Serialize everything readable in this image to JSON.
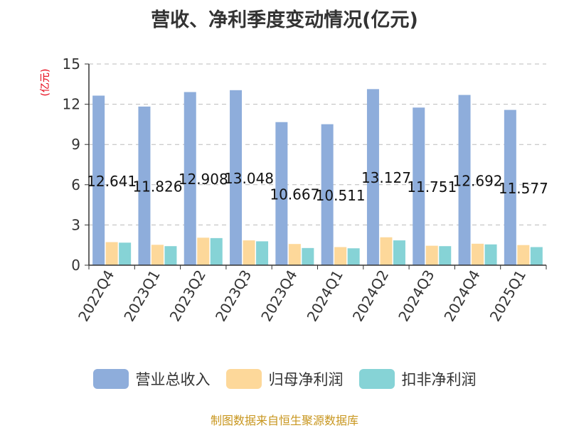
{
  "chart_data": {
    "type": "bar",
    "title": "营收、净利季度变动情况(亿元)",
    "ylabel": "(亿元)",
    "ylim": [
      0,
      15
    ],
    "yticks": [
      0,
      3,
      6,
      9,
      12,
      15
    ],
    "grid": true,
    "legend_position": "bottom",
    "categories": [
      "2022Q4",
      "2023Q1",
      "2023Q2",
      "2023Q3",
      "2023Q4",
      "2024Q1",
      "2024Q2",
      "2024Q3",
      "2024Q4",
      "2025Q1"
    ],
    "series": [
      {
        "name": "营业总收入",
        "color": "#8eaddb",
        "values": [
          12.641,
          11.826,
          12.908,
          13.048,
          10.667,
          10.511,
          13.127,
          11.751,
          12.692,
          11.577
        ],
        "labels": [
          "12.641",
          "11.826",
          "12.908",
          "13.048",
          "10.667",
          "10.511",
          "13.127",
          "11.751",
          "12.692",
          "11.577"
        ]
      },
      {
        "name": "归母净利润",
        "color": "#fdd89a",
        "values": [
          1.72,
          1.52,
          2.05,
          1.85,
          1.58,
          1.35,
          2.08,
          1.45,
          1.6,
          1.5
        ]
      },
      {
        "name": "扣非净利润",
        "color": "#86d3d6",
        "values": [
          1.68,
          1.42,
          2.02,
          1.78,
          1.28,
          1.26,
          1.85,
          1.42,
          1.55,
          1.35
        ]
      }
    ]
  },
  "source": "制图数据来自恒生聚源数据库"
}
